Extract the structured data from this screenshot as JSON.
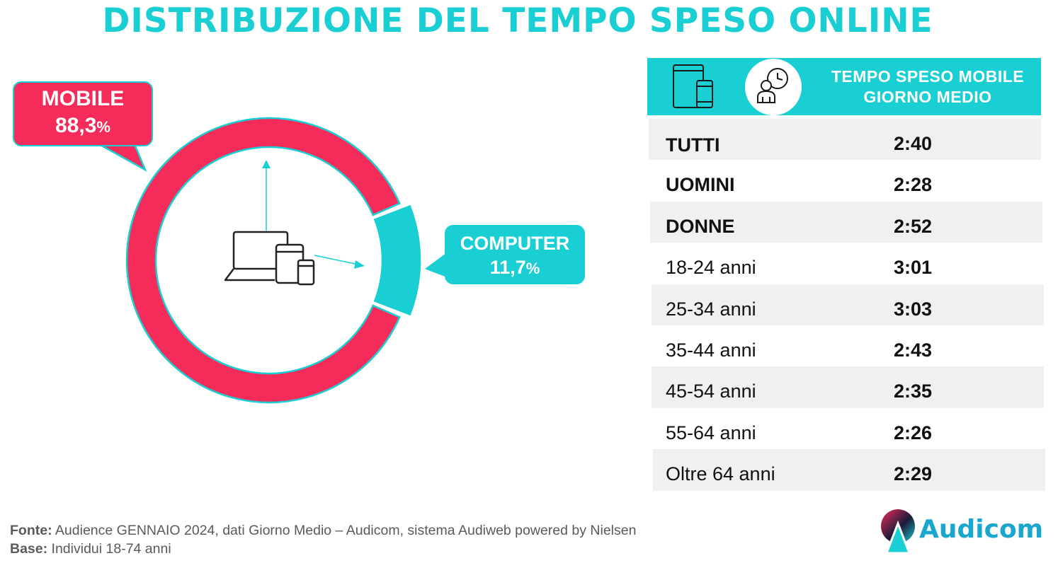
{
  "title": "DISTRIBUZIONE DEL TEMPO SPESO ONLINE",
  "colors": {
    "accent": "#19cfd3",
    "mobile": "#f52b5a",
    "text": "#111111",
    "row_alt": "#f0f0f0"
  },
  "chart_data": {
    "type": "pie",
    "variant": "donut",
    "series": [
      {
        "name": "MOBILE",
        "value": 88.3,
        "label": "88,3",
        "unit": "%",
        "color": "#f52b5a"
      },
      {
        "name": "COMPUTER",
        "value": 11.7,
        "label": "11,7",
        "unit": "%",
        "color": "#19cfd3"
      }
    ],
    "center_icon": "devices-icon"
  },
  "table": {
    "header_icons": [
      "tablet-phone-icon",
      "person-clock-icon"
    ],
    "header_title_line1": "TEMPO SPESO MOBILE",
    "header_title_line2": "GIORNO MEDIO",
    "rows": [
      {
        "label": "TUTTI",
        "value": "2:40",
        "bold": true,
        "shaded": true
      },
      {
        "label": "UOMINI",
        "value": "2:28",
        "bold": true,
        "shaded": false
      },
      {
        "label": "DONNE",
        "value": "2:52",
        "bold": true,
        "shaded": true
      },
      {
        "label": "18-24 anni",
        "value": "3:01",
        "bold": false,
        "shaded": false
      },
      {
        "label": "25-34 anni",
        "value": "3:03",
        "bold": false,
        "shaded": true
      },
      {
        "label": "35-44 anni",
        "value": "2:43",
        "bold": false,
        "shaded": false
      },
      {
        "label": "45-54 anni",
        "value": "2:35",
        "bold": false,
        "shaded": true
      },
      {
        "label": "55-64 anni",
        "value": "2:26",
        "bold": false,
        "shaded": false
      },
      {
        "label": "Oltre 64 anni",
        "value": "2:29",
        "bold": false,
        "shaded": true
      }
    ]
  },
  "footer": {
    "fonte_label": "Fonte:",
    "fonte_text": " Audience GENNAIO 2024, dati Giorno Medio – Audicom, sistema Audiweb powered by Nielsen",
    "base_label": "Base:",
    "base_text": "  Individui 18-74 anni"
  },
  "logo": {
    "text": "Audicom",
    "icon": "audicom-logo-icon"
  }
}
